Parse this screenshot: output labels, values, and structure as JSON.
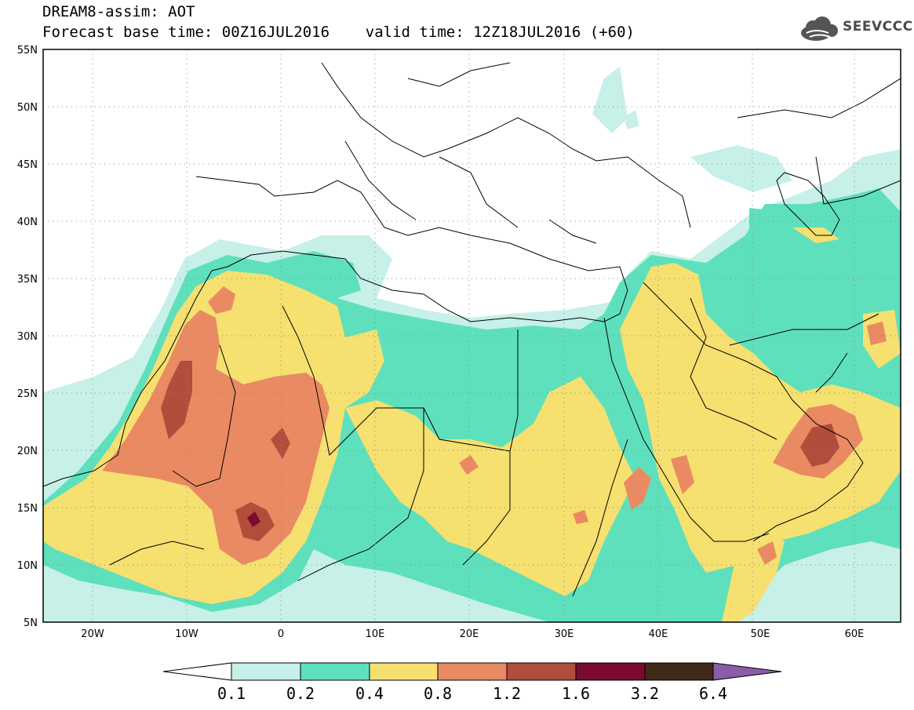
{
  "header": {
    "line1": "DREAM8-assim: AOT",
    "line2": "Forecast base time: 00Z16JUL2016    valid time: 12Z18JUL2016 (+60)"
  },
  "logo": {
    "text": "SEEVCCC",
    "icon": "cloud-icon"
  },
  "map": {
    "lon_ticks": [
      "20W",
      "10W",
      "0",
      "10E",
      "20E",
      "30E",
      "40E",
      "50E",
      "60E"
    ],
    "lat_ticks": [
      "55N",
      "50N",
      "45N",
      "40N",
      "35N",
      "30N",
      "25N",
      "20N",
      "15N",
      "10N",
      "5N"
    ]
  },
  "colorbar": {
    "labels": [
      "0.1",
      "0.2",
      "0.4",
      "0.8",
      "1.2",
      "1.6",
      "3.2",
      "6.4"
    ],
    "colors": [
      "#ffffff",
      "#c6f0e8",
      "#5fe0bc",
      "#f5e070",
      "#e98a62",
      "#b24d3c",
      "#7a0b2c",
      "#3f2a1a",
      "#8b5ca8"
    ]
  },
  "colors": {
    "level1": "#c6f0e8",
    "level2": "#5fe0bc",
    "level3": "#f5e070",
    "level4": "#e98a62",
    "level5": "#b24d3c",
    "level6": "#7a0b2c"
  }
}
